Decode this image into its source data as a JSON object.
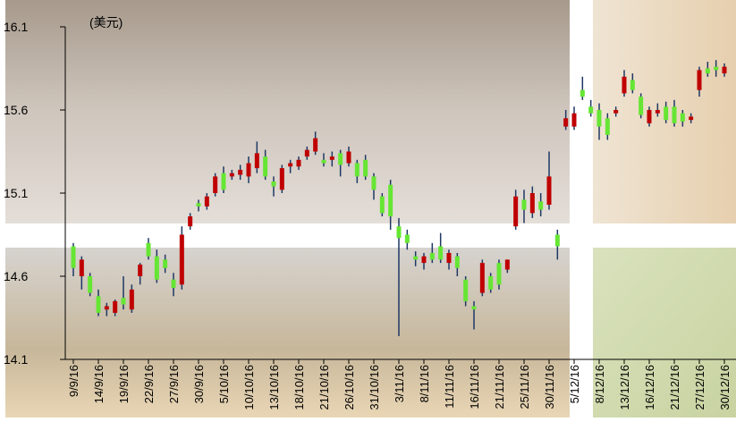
{
  "chart_data": {
    "type": "candlestick",
    "unit_label": "(美元)",
    "categories": [
      "9/9/16",
      null,
      null,
      "14/9/16",
      null,
      null,
      "19/9/16",
      null,
      null,
      "22/9/16",
      null,
      null,
      "27/9/16",
      null,
      null,
      "30/9/16",
      null,
      null,
      "5/10/16",
      null,
      null,
      "10/10/16",
      null,
      null,
      "13/10/16",
      null,
      null,
      "18/10/16",
      null,
      null,
      "21/10/16",
      null,
      null,
      "26/10/16",
      null,
      null,
      "31/10/16",
      null,
      null,
      "3/11/16",
      null,
      null,
      "8/11/16",
      null,
      null,
      "11/11/16",
      null,
      null,
      "16/11/16",
      null,
      null,
      "21/11/16",
      null,
      null,
      "25/11/16",
      null,
      null,
      "30/11/16",
      null,
      null,
      "5/12/16",
      null,
      null,
      "8/12/16",
      null,
      null,
      "13/12/16",
      null,
      null,
      "16/12/16",
      null,
      null,
      "21/12/16",
      null,
      null,
      "27/12/16",
      null,
      null,
      "30/12/16"
    ],
    "open": [
      14.78,
      14.6,
      14.6,
      14.48,
      14.4,
      14.38,
      14.47,
      14.4,
      14.6,
      14.8,
      14.72,
      14.7,
      14.58,
      14.55,
      14.9,
      15.04,
      15.02,
      15.1,
      15.22,
      15.2,
      15.21,
      15.2,
      15.25,
      15.32,
      15.17,
      15.12,
      15.26,
      15.26,
      15.32,
      15.35,
      15.3,
      15.3,
      15.34,
      15.28,
      15.28,
      15.3,
      15.2,
      15.08,
      15.15,
      14.9,
      14.85,
      14.72,
      14.68,
      14.74,
      14.78,
      14.68,
      14.72,
      14.58,
      14.42,
      14.5,
      14.6,
      14.68,
      14.64,
      14.9,
      15.06,
      14.98,
      15.05,
      15.03,
      14.85,
      15.5,
      15.5,
      15.72,
      15.62,
      15.6,
      15.55,
      15.58,
      15.7,
      15.78,
      15.68,
      15.52,
      15.58,
      15.62,
      15.62,
      15.58,
      15.54,
      15.72,
      15.85,
      15.86,
      15.82
    ],
    "high": [
      14.8,
      14.72,
      14.62,
      14.52,
      14.44,
      14.46,
      14.6,
      14.55,
      14.68,
      14.83,
      14.76,
      14.73,
      14.62,
      14.9,
      14.98,
      15.06,
      15.1,
      15.22,
      15.26,
      15.24,
      15.27,
      15.32,
      15.41,
      15.36,
      15.2,
      15.27,
      15.3,
      15.32,
      15.38,
      15.47,
      15.34,
      15.35,
      15.36,
      15.38,
      15.3,
      15.33,
      15.22,
      15.1,
      15.18,
      14.95,
      14.88,
      14.75,
      14.74,
      14.8,
      14.86,
      14.76,
      14.74,
      14.6,
      14.45,
      14.7,
      14.62,
      14.7,
      14.7,
      15.12,
      15.12,
      15.14,
      15.1,
      15.35,
      14.88,
      15.6,
      15.62,
      15.8,
      15.66,
      15.64,
      15.58,
      15.62,
      15.84,
      15.82,
      15.7,
      15.62,
      15.64,
      15.65,
      15.66,
      15.6,
      15.58,
      15.86,
      15.89,
      15.9,
      15.88
    ],
    "low": [
      14.6,
      14.52,
      14.48,
      14.36,
      14.36,
      14.36,
      14.4,
      14.38,
      14.55,
      14.7,
      14.56,
      14.62,
      14.48,
      14.52,
      14.88,
      14.99,
      15.0,
      15.08,
      15.1,
      15.18,
      15.18,
      15.16,
      15.22,
      15.18,
      15.08,
      15.1,
      15.22,
      15.24,
      15.3,
      15.33,
      15.26,
      15.26,
      15.2,
      15.26,
      15.16,
      15.18,
      15.06,
      14.96,
      14.88,
      14.24,
      14.76,
      14.66,
      14.64,
      14.68,
      14.68,
      14.64,
      14.6,
      14.42,
      14.28,
      14.48,
      14.5,
      14.52,
      14.62,
      14.88,
      14.92,
      14.95,
      14.96,
      15.0,
      14.7,
      15.48,
      15.48,
      15.66,
      15.56,
      15.42,
      15.42,
      15.56,
      15.68,
      15.7,
      15.55,
      15.5,
      15.56,
      15.52,
      15.5,
      15.5,
      15.52,
      15.68,
      15.8,
      15.8,
      15.8
    ],
    "close": [
      14.65,
      14.7,
      14.5,
      14.38,
      14.42,
      14.45,
      14.43,
      14.52,
      14.67,
      14.72,
      14.58,
      14.65,
      14.53,
      14.85,
      14.96,
      15.02,
      15.08,
      15.2,
      15.12,
      15.22,
      15.24,
      15.28,
      15.34,
      15.2,
      15.14,
      15.25,
      15.28,
      15.3,
      15.36,
      15.43,
      15.28,
      15.32,
      15.27,
      15.35,
      15.2,
      15.2,
      15.12,
      14.98,
      14.96,
      14.83,
      14.8,
      14.7,
      14.72,
      14.7,
      14.7,
      14.74,
      14.65,
      14.45,
      14.4,
      14.68,
      14.52,
      14.55,
      14.7,
      15.08,
      15.0,
      15.1,
      15.0,
      15.2,
      14.78,
      15.55,
      15.58,
      15.68,
      15.58,
      15.5,
      15.45,
      15.6,
      15.8,
      15.72,
      15.57,
      15.6,
      15.6,
      15.54,
      15.52,
      15.53,
      15.56,
      15.84,
      15.82,
      15.84,
      15.86
    ],
    "up_color": "#c00000",
    "down_color": "#66e633",
    "wick_color": "#1f3864",
    "ylim": [
      14.1,
      16.1
    ],
    "yticks": [
      14.1,
      14.6,
      15.1,
      15.6,
      16.1
    ]
  }
}
